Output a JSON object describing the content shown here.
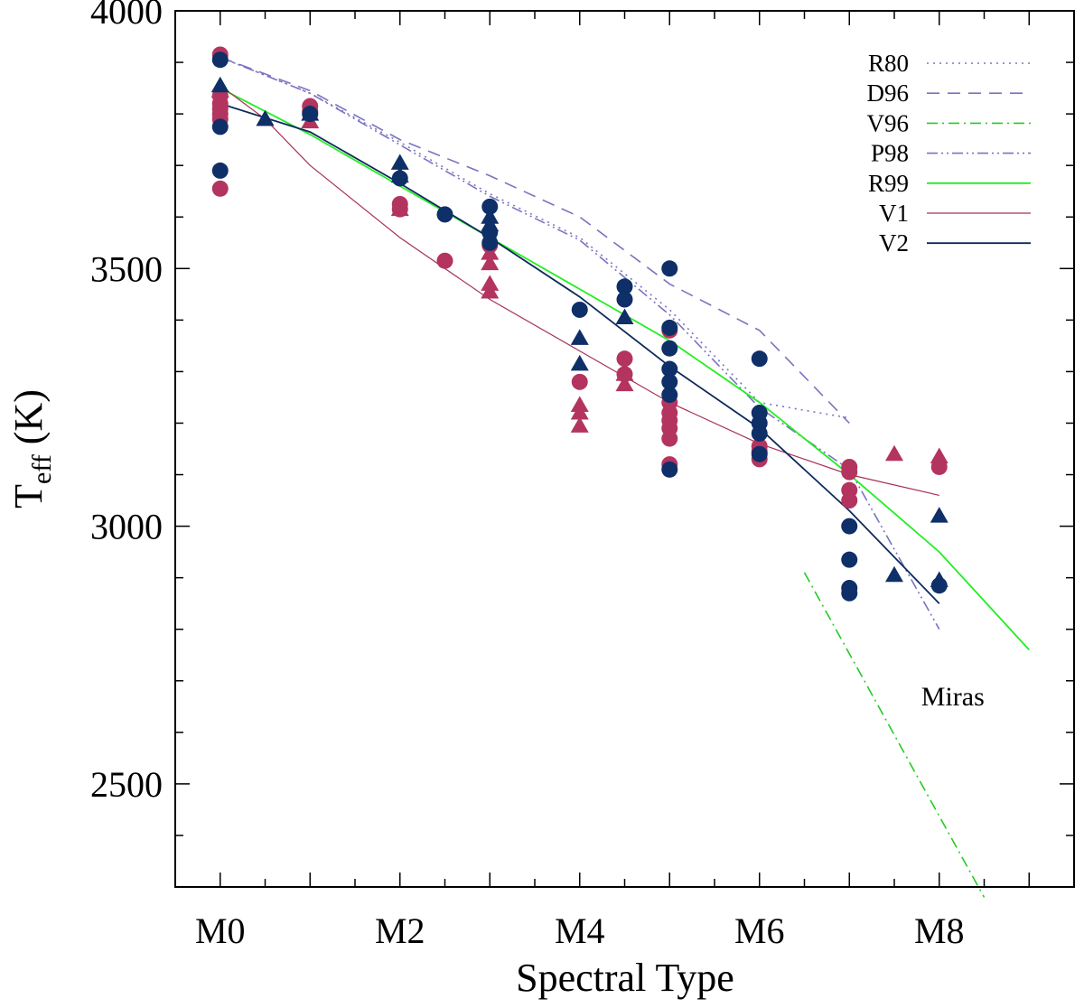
{
  "chart_data": {
    "type": "scatter",
    "xlabel": "Spectral Type",
    "ylabel_main": "T",
    "ylabel_sub": "eff",
    "ylabel_unit": " (K)",
    "xlim": [
      -0.5,
      9.5
    ],
    "ylim": [
      2300,
      4000
    ],
    "x_ticks": [
      {
        "value": 0,
        "label": "M0"
      },
      {
        "value": 2,
        "label": "M2"
      },
      {
        "value": 4,
        "label": "M4"
      },
      {
        "value": 6,
        "label": "M6"
      },
      {
        "value": 8,
        "label": "M8"
      }
    ],
    "x_minor_step": 0.5,
    "y_ticks": [
      {
        "value": 2500,
        "label": "2500"
      },
      {
        "value": 3000,
        "label": "3000"
      },
      {
        "value": 3500,
        "label": "3500"
      },
      {
        "value": 4000,
        "label": "4000"
      }
    ],
    "y_minor_step": 100,
    "annotation": {
      "text": "Miras",
      "x": 8.0,
      "y": 2670
    },
    "series": [
      {
        "name": "R80",
        "color": "#7a74c0",
        "dash": "2,5",
        "width": 1.6,
        "points": [
          [
            0,
            3910
          ],
          [
            1,
            3840
          ],
          [
            2,
            3745
          ],
          [
            3,
            3645
          ],
          [
            4,
            3560
          ],
          [
            5,
            3420
          ],
          [
            6,
            3240
          ],
          [
            7,
            3210
          ]
        ]
      },
      {
        "name": "D96",
        "color": "#7a74c0",
        "dash": "14,9",
        "width": 1.6,
        "points": [
          [
            0,
            3910
          ],
          [
            1,
            3845
          ],
          [
            2,
            3750
          ],
          [
            3,
            3680
          ],
          [
            4,
            3600
          ],
          [
            5,
            3470
          ],
          [
            6,
            3380
          ],
          [
            7,
            3200
          ]
        ]
      },
      {
        "name": "V96",
        "color": "#22cc22",
        "dash": "12,5,2,5",
        "width": 1.6,
        "points": [
          [
            6.5,
            2910
          ],
          [
            8.5,
            2280
          ]
        ]
      },
      {
        "name": "P98",
        "color": "#7a74c0",
        "dash": "12,4,2,4,2,4",
        "width": 1.6,
        "points": [
          [
            0,
            3910
          ],
          [
            1,
            3840
          ],
          [
            2,
            3740
          ],
          [
            3,
            3640
          ],
          [
            4,
            3555
          ],
          [
            5,
            3410
          ],
          [
            6,
            3230
          ],
          [
            7,
            3110
          ],
          [
            8,
            2800
          ]
        ]
      },
      {
        "name": "R99",
        "color": "#22ee22",
        "dash": "",
        "width": 1.8,
        "points": [
          [
            0,
            3850
          ],
          [
            1,
            3760
          ],
          [
            2,
            3660
          ],
          [
            3,
            3560
          ],
          [
            4,
            3460
          ],
          [
            5,
            3360
          ],
          [
            6,
            3240
          ],
          [
            7,
            3100
          ],
          [
            8,
            2950
          ],
          [
            9,
            2760
          ]
        ]
      },
      {
        "name": "V1",
        "color": "#a83058",
        "dash": "",
        "width": 1.2,
        "points": [
          [
            0,
            3855
          ],
          [
            0.5,
            3790
          ],
          [
            1,
            3700
          ],
          [
            2,
            3560
          ],
          [
            3,
            3440
          ],
          [
            4,
            3340
          ],
          [
            5,
            3240
          ],
          [
            6,
            3160
          ],
          [
            7,
            3100
          ],
          [
            8,
            3060
          ]
        ]
      },
      {
        "name": "V2",
        "color": "#0e2a5a",
        "dash": "",
        "width": 1.8,
        "points": [
          [
            0,
            3820
          ],
          [
            1,
            3765
          ],
          [
            2,
            3665
          ],
          [
            3,
            3560
          ],
          [
            4,
            3445
          ],
          [
            5,
            3310
          ],
          [
            6,
            3190
          ],
          [
            7,
            3030
          ],
          [
            8,
            2850
          ]
        ]
      }
    ],
    "points": {
      "pink_circle": {
        "color": "#b3345f",
        "data": [
          [
            0,
            3915
          ],
          [
            0,
            3835
          ],
          [
            0,
            3820
          ],
          [
            0,
            3810
          ],
          [
            0,
            3800
          ],
          [
            0,
            3790
          ],
          [
            0,
            3655
          ],
          [
            1,
            3815
          ],
          [
            1,
            3805
          ],
          [
            2,
            3625
          ],
          [
            2,
            3615
          ],
          [
            2.5,
            3515
          ],
          [
            3,
            3545
          ],
          [
            4,
            3280
          ],
          [
            4.5,
            3325
          ],
          [
            4.5,
            3295
          ],
          [
            5,
            3380
          ],
          [
            5,
            3240
          ],
          [
            5,
            3220
          ],
          [
            5,
            3205
          ],
          [
            5,
            3190
          ],
          [
            5,
            3170
          ],
          [
            5,
            3120
          ],
          [
            6,
            3155
          ],
          [
            6,
            3145
          ],
          [
            6,
            3130
          ],
          [
            7,
            3115
          ],
          [
            7,
            3105
          ],
          [
            7,
            3070
          ],
          [
            7,
            3050
          ],
          [
            8,
            3115
          ]
        ]
      },
      "pink_triangle": {
        "color": "#b3345f",
        "data": [
          [
            0,
            3845
          ],
          [
            0.5,
            3790
          ],
          [
            1,
            3785
          ],
          [
            2,
            3615
          ],
          [
            3,
            3530
          ],
          [
            3,
            3510
          ],
          [
            3,
            3470
          ],
          [
            3,
            3455
          ],
          [
            4,
            3235
          ],
          [
            4,
            3220
          ],
          [
            4,
            3195
          ],
          [
            4.5,
            3295
          ],
          [
            4.5,
            3275
          ],
          [
            7.5,
            3140
          ],
          [
            8,
            3135
          ]
        ]
      },
      "navy_circle": {
        "color": "#0e2f68",
        "data": [
          [
            0,
            3905
          ],
          [
            0,
            3775
          ],
          [
            0,
            3690
          ],
          [
            1,
            3800
          ],
          [
            2,
            3675
          ],
          [
            2.5,
            3605
          ],
          [
            3,
            3620
          ],
          [
            3,
            3570
          ],
          [
            3,
            3550
          ],
          [
            4,
            3420
          ],
          [
            4.5,
            3465
          ],
          [
            4.5,
            3440
          ],
          [
            5,
            3500
          ],
          [
            5,
            3385
          ],
          [
            5,
            3345
          ],
          [
            5,
            3305
          ],
          [
            5,
            3280
          ],
          [
            5,
            3255
          ],
          [
            5,
            3110
          ],
          [
            6,
            3325
          ],
          [
            6,
            3220
          ],
          [
            6,
            3200
          ],
          [
            6,
            3180
          ],
          [
            6,
            3140
          ],
          [
            7,
            3000
          ],
          [
            7,
            2935
          ],
          [
            7,
            2880
          ],
          [
            7,
            2870
          ],
          [
            8,
            2885
          ]
        ]
      },
      "navy_triangle": {
        "color": "#0e2f68",
        "data": [
          [
            0,
            3855
          ],
          [
            0.5,
            3790
          ],
          [
            1,
            3800
          ],
          [
            2,
            3705
          ],
          [
            2,
            3680
          ],
          [
            3,
            3600
          ],
          [
            3,
            3585
          ],
          [
            4,
            3365
          ],
          [
            4,
            3315
          ],
          [
            4.5,
            3405
          ],
          [
            7.5,
            2905
          ],
          [
            8,
            3020
          ],
          [
            8,
            2895
          ]
        ]
      }
    },
    "legend": {
      "placement": "top-right",
      "entries": [
        "R80",
        "D96",
        "V96",
        "P98",
        "R99",
        "V1",
        "V2"
      ]
    }
  }
}
